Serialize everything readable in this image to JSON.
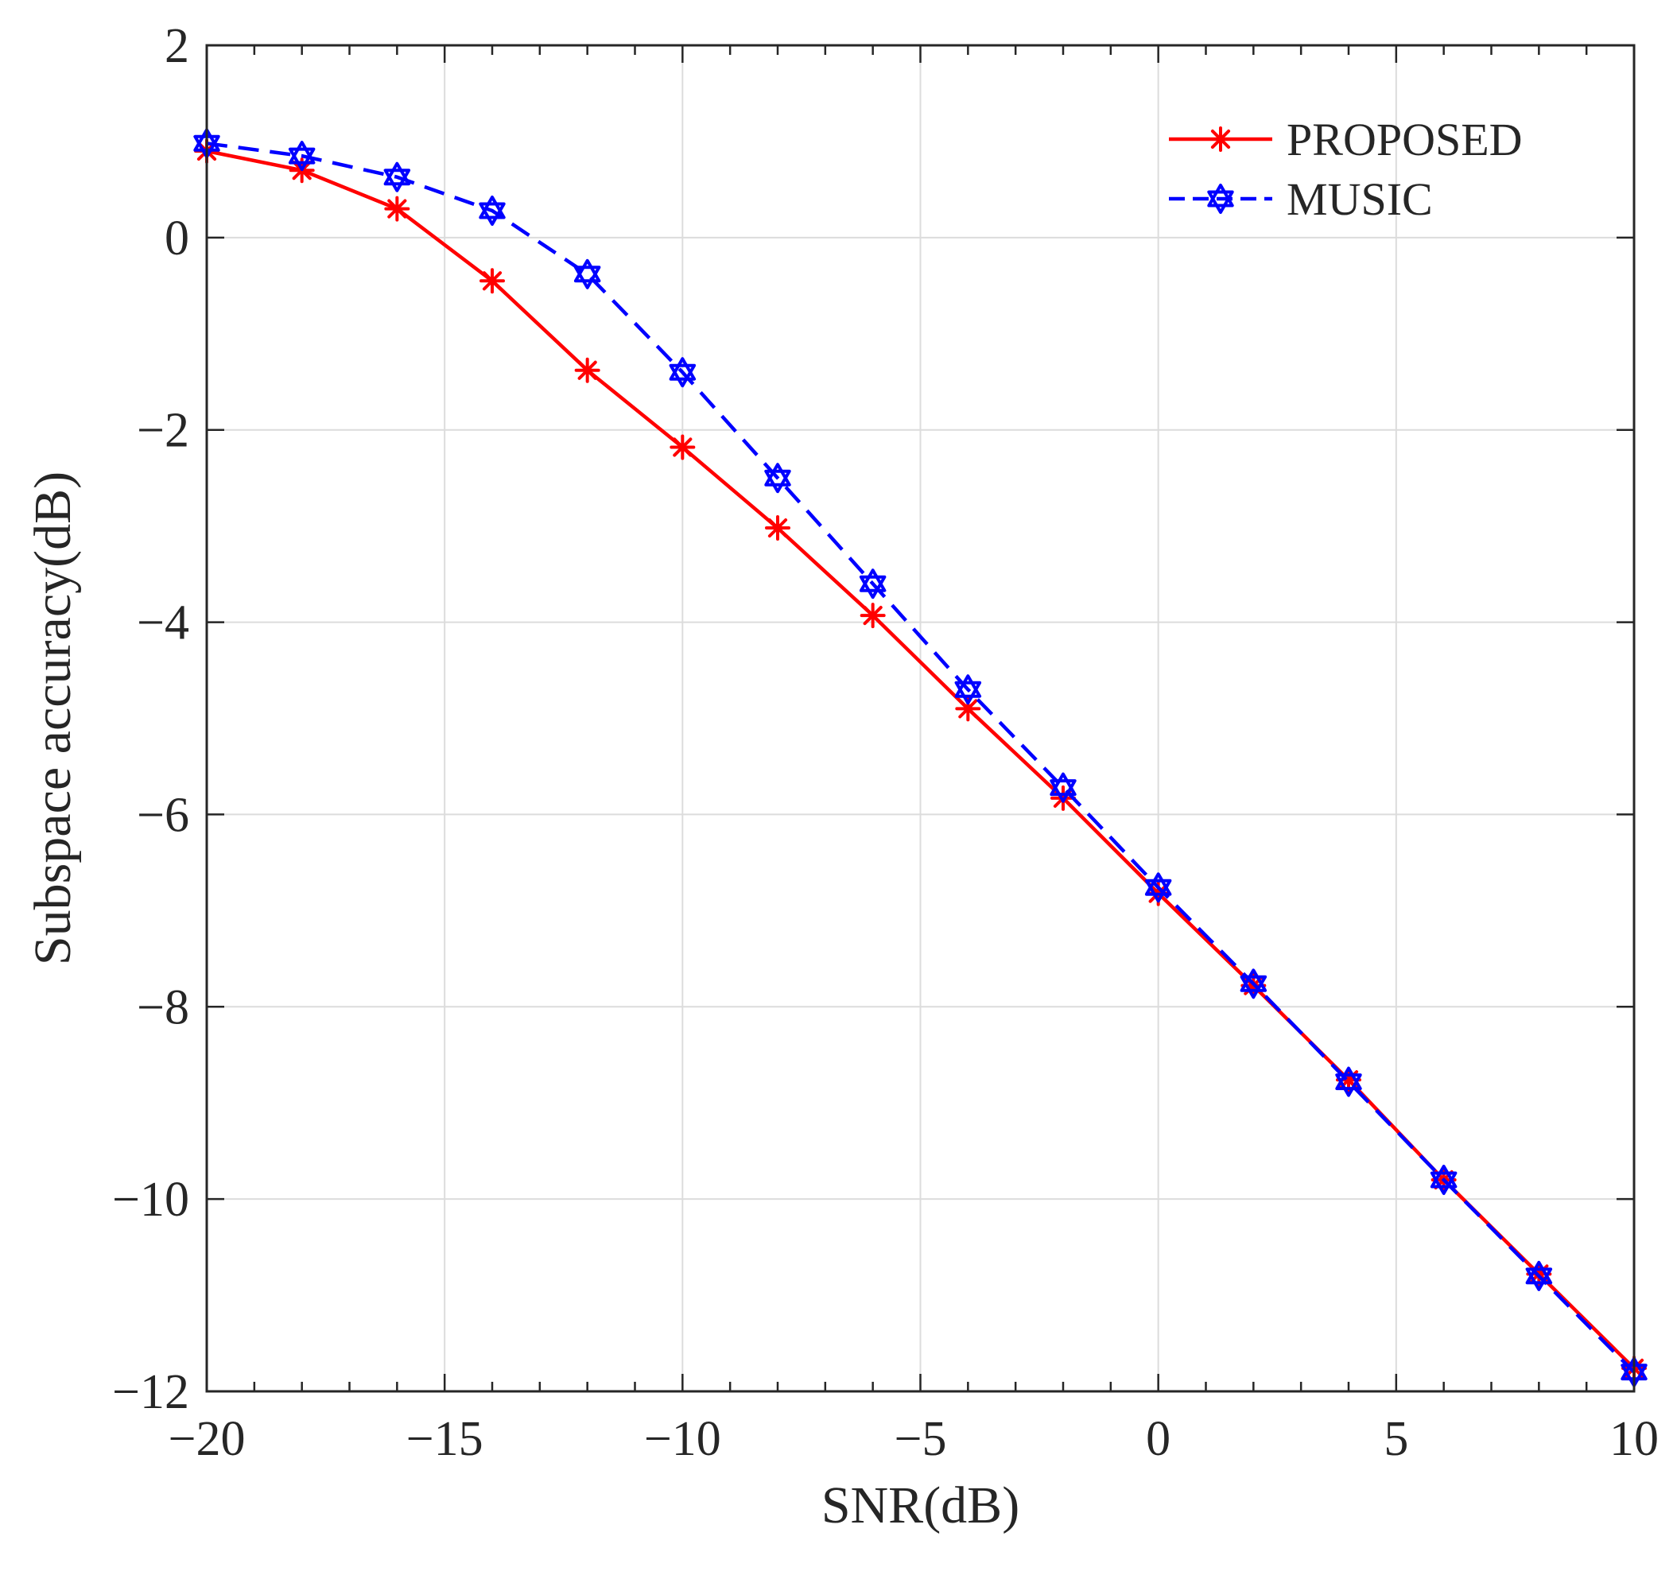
{
  "chart_data": {
    "type": "line",
    "title": "",
    "xlabel": "SNR(dB)",
    "ylabel": "Subspace accuracy(dB)",
    "xlim": [
      -20,
      10
    ],
    "ylim": [
      -12,
      2
    ],
    "grid": true,
    "legend_placement": "top-right",
    "x_ticks": [
      -20,
      -15,
      -10,
      -5,
      0,
      5,
      10
    ],
    "x_tick_labels": [
      "−20",
      "−15",
      "−10",
      "−5",
      "0",
      "5",
      "10"
    ],
    "y_ticks": [
      2,
      0,
      -2,
      -4,
      -6,
      -8,
      -10,
      -12
    ],
    "y_tick_labels": [
      "2",
      "0",
      "−2",
      "−4",
      "−6",
      "−8",
      "−10",
      "−12"
    ],
    "x": [
      -20,
      -18,
      -16,
      -14,
      -12,
      -10,
      -8,
      -6,
      -4,
      -2,
      0,
      2,
      4,
      6,
      8,
      10
    ],
    "series": [
      {
        "name": "PROPOSED",
        "color": "#ff0000",
        "line_style": "solid",
        "marker": "asterisk",
        "values": [
          0.9,
          0.7,
          0.3,
          -0.45,
          -1.38,
          -2.18,
          -3.02,
          -3.93,
          -4.9,
          -5.83,
          -6.82,
          -7.78,
          -8.76,
          -9.8,
          -10.78,
          -11.76
        ]
      },
      {
        "name": "MUSIC",
        "color": "#0000ff",
        "line_style": "dashed",
        "marker": "hexagram",
        "values": [
          0.98,
          0.85,
          0.63,
          0.28,
          -0.38,
          -1.4,
          -2.5,
          -3.6,
          -4.7,
          -5.72,
          -6.76,
          -7.76,
          -8.78,
          -9.8,
          -10.8,
          -11.8
        ]
      }
    ]
  }
}
